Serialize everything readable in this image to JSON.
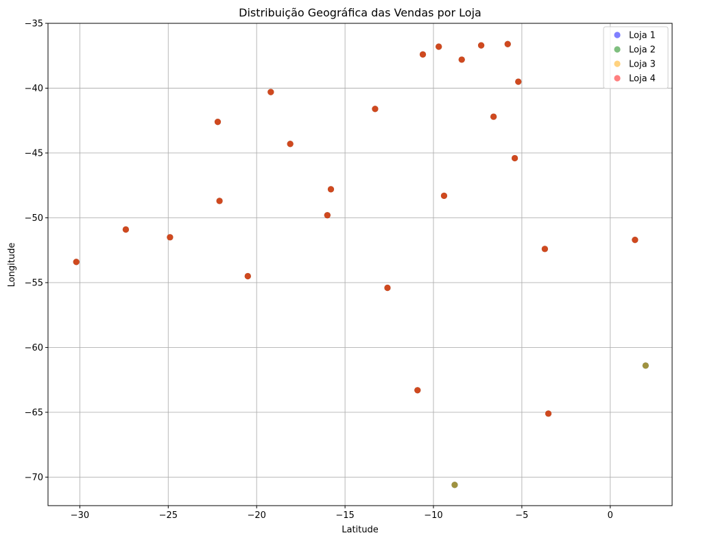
{
  "chart_data": {
    "type": "scatter",
    "title": "Distribuição Geográfica das Vendas por Loja",
    "xlabel": "Latitude",
    "ylabel": "Longitude",
    "xlim": [
      -31.8,
      3.5
    ],
    "ylim": [
      -72.2,
      -35.0
    ],
    "xticks": [
      -30,
      -25,
      -20,
      -15,
      -10,
      -5,
      0
    ],
    "yticks": [
      -35,
      -40,
      -45,
      -50,
      -55,
      -60,
      -65,
      -70
    ],
    "grid": true,
    "legend_position": "top-right",
    "series": [
      {
        "name": "Loja 1",
        "color": "#0000ff",
        "points": [
          [
            -30.2,
            -53.4
          ],
          [
            -27.4,
            -50.9
          ],
          [
            -24.9,
            -51.5
          ],
          [
            -22.2,
            -42.6
          ],
          [
            -22.1,
            -48.7
          ],
          [
            -20.5,
            -54.5
          ],
          [
            -19.2,
            -40.3
          ],
          [
            -18.1,
            -44.3
          ],
          [
            -16.0,
            -49.8
          ],
          [
            -15.8,
            -47.8
          ],
          [
            -13.3,
            -41.6
          ],
          [
            -12.6,
            -55.4
          ],
          [
            -10.9,
            -63.3
          ],
          [
            -10.6,
            -37.4
          ],
          [
            -9.7,
            -36.8
          ],
          [
            -9.4,
            -48.3
          ],
          [
            -8.4,
            -37.8
          ],
          [
            -7.3,
            -36.7
          ],
          [
            -6.6,
            -42.2
          ],
          [
            -5.8,
            -36.6
          ],
          [
            -5.4,
            -45.4
          ],
          [
            -5.2,
            -39.5
          ],
          [
            -3.7,
            -52.4
          ],
          [
            -3.5,
            -65.1
          ],
          [
            1.4,
            -51.7
          ],
          [
            2.0,
            -61.4
          ],
          [
            -8.8,
            -70.6
          ]
        ]
      },
      {
        "name": "Loja 2",
        "color": "#008000",
        "points": [
          [
            -30.2,
            -53.4
          ],
          [
            -27.4,
            -50.9
          ],
          [
            -24.9,
            -51.5
          ],
          [
            -22.2,
            -42.6
          ],
          [
            -22.1,
            -48.7
          ],
          [
            -20.5,
            -54.5
          ],
          [
            -19.2,
            -40.3
          ],
          [
            -18.1,
            -44.3
          ],
          [
            -16.0,
            -49.8
          ],
          [
            -15.8,
            -47.8
          ],
          [
            -13.3,
            -41.6
          ],
          [
            -12.6,
            -55.4
          ],
          [
            -10.9,
            -63.3
          ],
          [
            -10.6,
            -37.4
          ],
          [
            -9.7,
            -36.8
          ],
          [
            -9.4,
            -48.3
          ],
          [
            -8.4,
            -37.8
          ],
          [
            -7.3,
            -36.7
          ],
          [
            -6.6,
            -42.2
          ],
          [
            -5.8,
            -36.6
          ],
          [
            -5.4,
            -45.4
          ],
          [
            -5.2,
            -39.5
          ],
          [
            -3.7,
            -52.4
          ],
          [
            -3.5,
            -65.1
          ],
          [
            1.4,
            -51.7
          ],
          [
            2.0,
            -61.4
          ],
          [
            -8.8,
            -70.6
          ]
        ]
      },
      {
        "name": "Loja 3",
        "color": "#ffa500",
        "points": [
          [
            -30.2,
            -53.4
          ],
          [
            -27.4,
            -50.9
          ],
          [
            -24.9,
            -51.5
          ],
          [
            -22.2,
            -42.6
          ],
          [
            -22.1,
            -48.7
          ],
          [
            -20.5,
            -54.5
          ],
          [
            -19.2,
            -40.3
          ],
          [
            -18.1,
            -44.3
          ],
          [
            -16.0,
            -49.8
          ],
          [
            -15.8,
            -47.8
          ],
          [
            -13.3,
            -41.6
          ],
          [
            -12.6,
            -55.4
          ],
          [
            -10.9,
            -63.3
          ],
          [
            -10.6,
            -37.4
          ],
          [
            -9.7,
            -36.8
          ],
          [
            -9.4,
            -48.3
          ],
          [
            -8.4,
            -37.8
          ],
          [
            -7.3,
            -36.7
          ],
          [
            -6.6,
            -42.2
          ],
          [
            -5.8,
            -36.6
          ],
          [
            -5.4,
            -45.4
          ],
          [
            -5.2,
            -39.5
          ],
          [
            -3.7,
            -52.4
          ],
          [
            -3.5,
            -65.1
          ],
          [
            1.4,
            -51.7
          ],
          [
            2.0,
            -61.4
          ],
          [
            -8.8,
            -70.6
          ]
        ]
      },
      {
        "name": "Loja 4",
        "color": "#ff0000",
        "points": [
          [
            -30.2,
            -53.4
          ],
          [
            -27.4,
            -50.9
          ],
          [
            -24.9,
            -51.5
          ],
          [
            -22.2,
            -42.6
          ],
          [
            -22.1,
            -48.7
          ],
          [
            -20.5,
            -54.5
          ],
          [
            -19.2,
            -40.3
          ],
          [
            -18.1,
            -44.3
          ],
          [
            -16.0,
            -49.8
          ],
          [
            -15.8,
            -47.8
          ],
          [
            -13.3,
            -41.6
          ],
          [
            -12.6,
            -55.4
          ],
          [
            -10.9,
            -63.3
          ],
          [
            -10.6,
            -37.4
          ],
          [
            -9.7,
            -36.8
          ],
          [
            -9.4,
            -48.3
          ],
          [
            -8.4,
            -37.8
          ],
          [
            -7.3,
            -36.7
          ],
          [
            -6.6,
            -42.2
          ],
          [
            -5.8,
            -36.6
          ],
          [
            -5.4,
            -45.4
          ],
          [
            -5.2,
            -39.5
          ],
          [
            -3.7,
            -52.4
          ],
          [
            -3.5,
            -65.1
          ],
          [
            1.4,
            -51.7
          ]
        ]
      }
    ]
  }
}
